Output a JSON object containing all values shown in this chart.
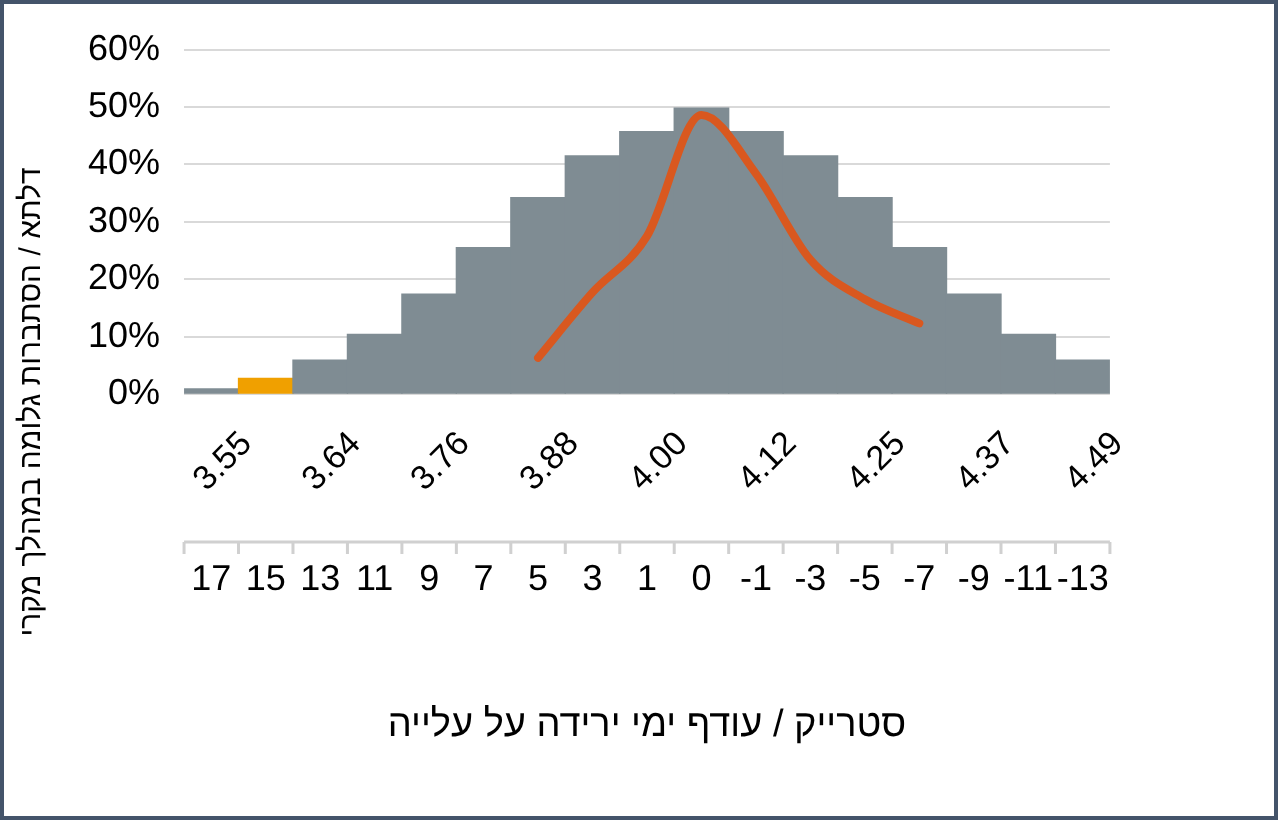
{
  "chart_data": {
    "type": "bar",
    "ylabel": "דלתא / הסתברות גלומה במהלך מקרי",
    "xlabel": "סטרייק / עודף ימי ירידה על עלייה",
    "categories": [
      "17",
      "15",
      "13",
      "11",
      "9",
      "7",
      "5",
      "3",
      "1",
      "0",
      "-1",
      "-3",
      "-5",
      "-7",
      "-9",
      "-11",
      "-13"
    ],
    "series": [
      {
        "colors": [
          "#7f8c93",
          "#f0a000",
          "#7f8c93",
          "#7f8c93",
          "#7f8c93",
          "#7f8c93",
          "#7f8c93",
          "#7f8c93",
          "#7f8c93",
          "#7f8c93",
          "#7f8c93",
          "#7f8c93",
          "#7f8c93",
          "#7f8c93",
          "#7f8c93",
          "#7f8c93",
          "#7f8c93"
        ],
        "values": [
          0.9,
          2.7,
          5.9,
          10.4,
          17.4,
          25.5,
          34.2,
          41.5,
          45.7,
          49.8,
          45.7,
          41.5,
          34.2,
          25.5,
          17.4,
          10.4,
          5.9
        ]
      },
      {
        "type": "line",
        "color": "#d9581f",
        "values": [
          null,
          null,
          null,
          null,
          null,
          null,
          6.3,
          17.7,
          27.5,
          48.6,
          38.4,
          23.4,
          16.5,
          12.3,
          null,
          null,
          null
        ]
      }
    ],
    "ylim": [
      0,
      60
    ],
    "yticks": [
      {
        "value": 0,
        "label": "0%"
      },
      {
        "value": 10,
        "label": "10%"
      },
      {
        "value": 20,
        "label": "20%"
      },
      {
        "value": 30,
        "label": "30%"
      },
      {
        "value": 40,
        "label": "40%"
      },
      {
        "value": 50,
        "label": "50%"
      },
      {
        "value": 60,
        "label": "60%"
      }
    ],
    "grid": "y",
    "legend": false,
    "marker": "none",
    "line_style": "solid",
    "annotations": [
      "3.55",
      "3.64",
      "3.76",
      "3.88",
      "4.00",
      "4.12",
      "4.25",
      "4.37",
      "4.49"
    ]
  }
}
